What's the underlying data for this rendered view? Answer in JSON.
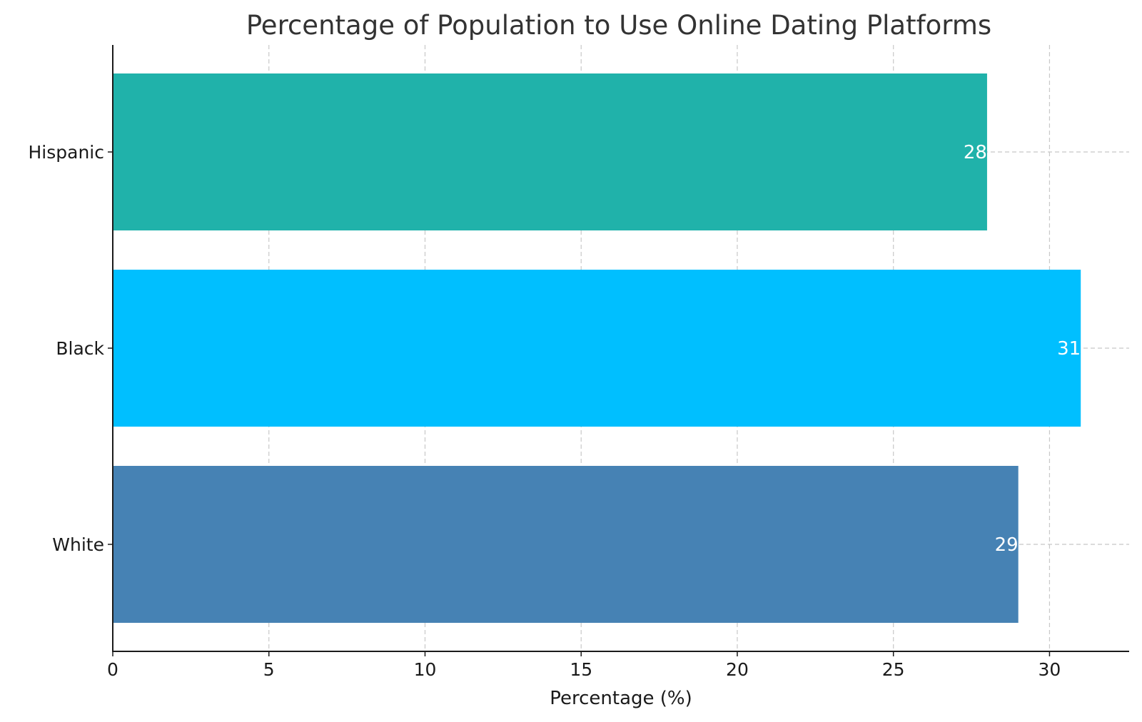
{
  "chart_data": {
    "type": "bar",
    "orientation": "horizontal",
    "title": "Percentage of Population to Use Online Dating Platforms",
    "xlabel": "Percentage (%)",
    "ylabel": "",
    "categories": [
      "White",
      "Black",
      "Hispanic"
    ],
    "values": [
      29,
      31,
      28
    ],
    "data_labels": [
      "29",
      "31",
      "28"
    ],
    "colors": [
      "#4682b4",
      "#00bfff",
      "#20b2aa"
    ],
    "xlim": [
      0,
      32.55
    ],
    "xticks": [
      0,
      5,
      10,
      15,
      20,
      25,
      30
    ],
    "xtick_labels": [
      "0",
      "5",
      "10",
      "15",
      "20",
      "25",
      "30"
    ],
    "grid": true,
    "legend": "none"
  }
}
